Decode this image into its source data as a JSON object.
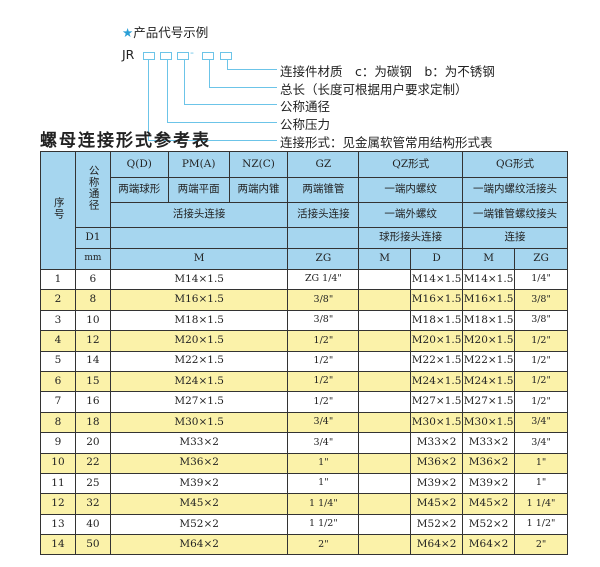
{
  "legend": {
    "title": "产品代号示例",
    "star": "★",
    "code_prefix": "JR",
    "dash": "-",
    "items": [
      "连接件材质　c：为碳钢　b：为不锈钢",
      "总长（长度可根据用户要求定制）",
      "公称通径",
      "公称压力",
      "连接形式：见金属软管常用结构形式表"
    ]
  },
  "table_title": "螺母连接形式参考表",
  "header": {
    "seq": "序号",
    "dn": "公称通径",
    "d1": "D1",
    "mm": "mm",
    "q": "Q(D)",
    "pm": "PM(A)",
    "nz": "NZ(C)",
    "gz": "GZ",
    "qz": "QZ形式",
    "qg": "QG形式",
    "q_desc": "两端球形",
    "pm_desc": "两端平面",
    "nz_desc": "两端内锥",
    "gz_desc": "两端锥管",
    "qz_desc": "一端内螺纹",
    "qg_desc": "一端内螺纹活接头",
    "qpn_conn": "活接头连接",
    "gz_conn": "活接头连接",
    "qz_conn1": "一端外螺纹",
    "qg_conn1": "一端锥管螺纹接头",
    "qz_conn2": "球形接头连接",
    "qg_conn2": "连接",
    "col_m": "M",
    "col_zg": "ZG",
    "qz_m": "M",
    "qz_d": "D",
    "qg_m": "M",
    "qg_zg": "ZG"
  },
  "rows": [
    {
      "no": "1",
      "dn": "6",
      "m": "M14×1.5",
      "zg": "ZG 1/4\"",
      "qz_m": "",
      "qz_d": "M14×1.5",
      "qg_m": "M14×1.5",
      "qg_zg": "1/4\""
    },
    {
      "no": "2",
      "dn": "8",
      "m": "M16×1.5",
      "zg": "3/8\"",
      "qz_m": "",
      "qz_d": "M16×1.5",
      "qg_m": "M16×1.5",
      "qg_zg": "3/8\""
    },
    {
      "no": "3",
      "dn": "10",
      "m": "M18×1.5",
      "zg": "3/8\"",
      "qz_m": "",
      "qz_d": "M18×1.5",
      "qg_m": "M18×1.5",
      "qg_zg": "3/8\""
    },
    {
      "no": "4",
      "dn": "12",
      "m": "M20×1.5",
      "zg": "1/2\"",
      "qz_m": "",
      "qz_d": "M20×1.5",
      "qg_m": "M20×1.5",
      "qg_zg": "1/2\""
    },
    {
      "no": "5",
      "dn": "14",
      "m": "M22×1.5",
      "zg": "1/2\"",
      "qz_m": "",
      "qz_d": "M22×1.5",
      "qg_m": "M22×1.5",
      "qg_zg": "1/2\""
    },
    {
      "no": "6",
      "dn": "15",
      "m": "M24×1.5",
      "zg": "1/2\"",
      "qz_m": "",
      "qz_d": "M24×1.5",
      "qg_m": "M24×1.5",
      "qg_zg": "1/2\""
    },
    {
      "no": "7",
      "dn": "16",
      "m": "M27×1.5",
      "zg": "1/2\"",
      "qz_m": "",
      "qz_d": "M27×1.5",
      "qg_m": "M27×1.5",
      "qg_zg": "1/2\""
    },
    {
      "no": "8",
      "dn": "18",
      "m": "M30×1.5",
      "zg": "3/4\"",
      "qz_m": "",
      "qz_d": "M30×1.5",
      "qg_m": "M30×1.5",
      "qg_zg": "3/4\""
    },
    {
      "no": "9",
      "dn": "20",
      "m": "M33×2",
      "zg": "3/4\"",
      "qz_m": "",
      "qz_d": "M33×2",
      "qg_m": "M33×2",
      "qg_zg": "3/4\""
    },
    {
      "no": "10",
      "dn": "22",
      "m": "M36×2",
      "zg": "1\"",
      "qz_m": "",
      "qz_d": "M36×2",
      "qg_m": "M36×2",
      "qg_zg": "1\""
    },
    {
      "no": "11",
      "dn": "25",
      "m": "M39×2",
      "zg": "1\"",
      "qz_m": "",
      "qz_d": "M39×2",
      "qg_m": "M39×2",
      "qg_zg": "1\""
    },
    {
      "no": "12",
      "dn": "32",
      "m": "M45×2",
      "zg": "1 1/4\"",
      "qz_m": "",
      "qz_d": "M45×2",
      "qg_m": "M45×2",
      "qg_zg": "1 1/4\""
    },
    {
      "no": "13",
      "dn": "40",
      "m": "M52×2",
      "zg": "1 1/2\"",
      "qz_m": "",
      "qz_d": "M52×2",
      "qg_m": "M52×2",
      "qg_zg": "1 1/2\""
    },
    {
      "no": "14",
      "dn": "50",
      "m": "M64×2",
      "zg": "2\"",
      "qz_m": "",
      "qz_d": "M64×2",
      "qg_m": "M64×2",
      "qg_zg": "2\""
    }
  ],
  "colors": {
    "header_bg": "#a6d6ef",
    "even_row_bg": "#fbf2a9",
    "accent": "#2a9fd6"
  }
}
